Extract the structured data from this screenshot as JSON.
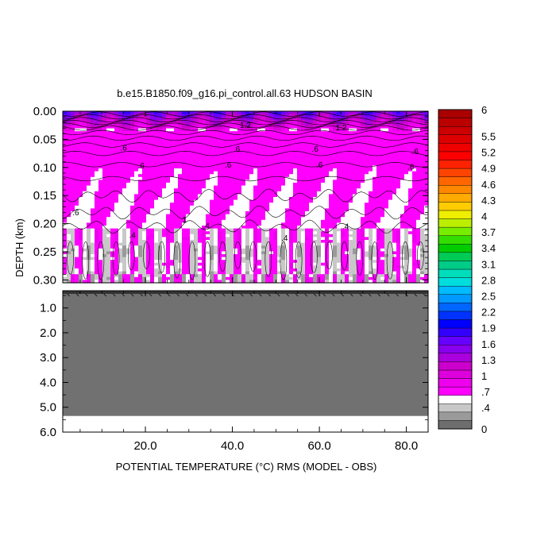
{
  "chart_data": {
    "type": "heatmap",
    "title": "b.e15.B1850.f09_g16.pi_control.all.63 HUDSON BASIN",
    "xlabel": "POTENTIAL TEMPERATURE (°C) RMS (MODEL - OBS)",
    "ylabel": "DEPTH (km)",
    "xlim": [
      1,
      85
    ],
    "x_ticks": [
      "20.0",
      "40.0",
      "60.0",
      "80.0"
    ],
    "x_tick_values": [
      20,
      40,
      60,
      80
    ],
    "upper_panel": {
      "ylim": [
        0.0,
        0.305
      ],
      "y_ticks": [
        "0.00",
        "0.05",
        "0.10",
        "0.15",
        "0.20",
        "0.25",
        "0.30"
      ],
      "y_tick_values": [
        0.0,
        0.05,
        0.1,
        0.15,
        0.2,
        0.25,
        0.3
      ]
    },
    "lower_panel": {
      "ylim": [
        0.305,
        6.0
      ],
      "y_ticks": [
        "1.0",
        "2.0",
        "3.0",
        "4.0",
        "5.0",
        "6.0"
      ],
      "y_tick_values": [
        1,
        2,
        3,
        4,
        5,
        6
      ],
      "bottom_depth": 5.35
    },
    "colorbar": {
      "labels": [
        "0",
        ".4",
        ".7",
        "1",
        "1.3",
        "1.6",
        "1.9",
        "2.2",
        "2.5",
        "2.8",
        "3.1",
        "3.4",
        "3.7",
        "4",
        "4.3",
        "4.6",
        "4.9",
        "5.2",
        "5.5",
        "6"
      ],
      "label_values": [
        0,
        0.4,
        0.7,
        1,
        1.3,
        1.6,
        1.9,
        2.2,
        2.5,
        2.8,
        3.1,
        3.4,
        3.7,
        4,
        4.3,
        4.6,
        4.9,
        5.2,
        5.5,
        6
      ],
      "range": [
        0,
        6
      ],
      "colors": [
        "#6e6e6e",
        "#9a9a9a",
        "#c8c8c8",
        "#ffffff",
        "#ff00ff",
        "#ee00ee",
        "#dd00dd",
        "#cc00cc",
        "#aa00dd",
        "#8800ee",
        "#6600ff",
        "#3300ff",
        "#0000ff",
        "#0033ff",
        "#0066ff",
        "#0099ff",
        "#00bbff",
        "#00dddd",
        "#00ddbb",
        "#00cc88",
        "#00cc55",
        "#00cc00",
        "#33dd00",
        "#77ee00",
        "#bbee00",
        "#eeee00",
        "#ffcc00",
        "#ffaa00",
        "#ff8800",
        "#ff6600",
        "#ff4400",
        "#ff2200",
        "#ff0000",
        "#ee0000",
        "#dd0000",
        "#cc0000",
        "#bb0000",
        "#aa0000"
      ]
    },
    "contour_labels": [
      {
        "text": ".6",
        "x": 4,
        "y": 0.185
      },
      {
        "text": ".6",
        "x": 15,
        "y": 0.07
      },
      {
        "text": ".6",
        "x": 19,
        "y": 0.102
      },
      {
        "text": ".6",
        "x": 41,
        "y": 0.072
      },
      {
        "text": ".6",
        "x": 39,
        "y": 0.1
      },
      {
        "text": ".6",
        "x": 60,
        "y": 0.1
      },
      {
        "text": ".6",
        "x": 59,
        "y": 0.072
      },
      {
        "text": ".6",
        "x": 81,
        "y": 0.104
      },
      {
        "text": ".6",
        "x": 82,
        "y": 0.076
      },
      {
        "text": "1",
        "x": 29,
        "y": 0.198
      },
      {
        "text": "1.2",
        "x": 43,
        "y": 0.03
      },
      {
        "text": "1.2",
        "x": 65,
        "y": 0.034
      },
      {
        "text": ".4",
        "x": 34,
        "y": 0.208
      },
      {
        "text": ".4",
        "x": 66,
        "y": 0.21
      },
      {
        "text": ".4",
        "x": 52,
        "y": 0.23
      },
      {
        "text": ".4",
        "x": 17,
        "y": 0.225
      }
    ]
  }
}
